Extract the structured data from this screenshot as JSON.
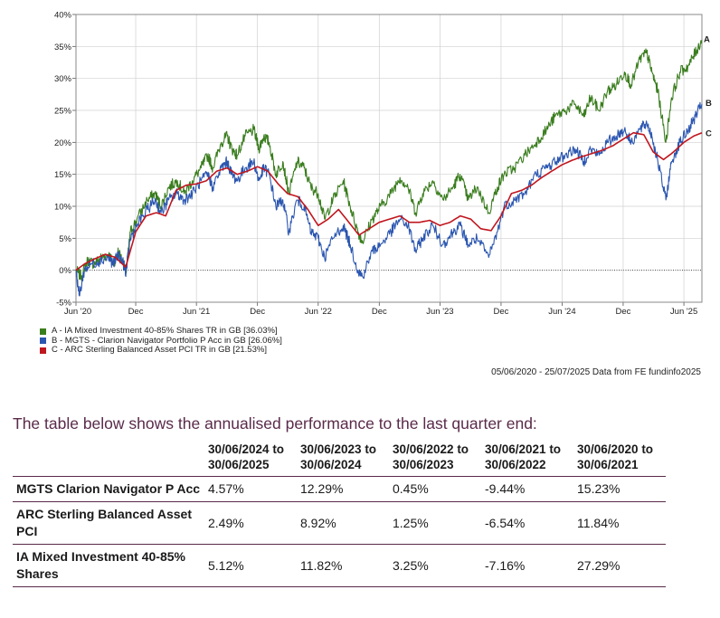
{
  "chart_data": {
    "type": "line",
    "y_ticks": [
      "40%",
      "35%",
      "30%",
      "25%",
      "20%",
      "15%",
      "10%",
      "5%",
      "0%",
      "-5%"
    ],
    "y_tick_values": [
      40,
      35,
      30,
      25,
      20,
      15,
      10,
      5,
      0,
      -5
    ],
    "ylim": [
      -5,
      40
    ],
    "x_ticks": [
      "Jun '20",
      "Dec",
      "Jun '21",
      "Dec",
      "Jun '22",
      "Dec",
      "Jun '23",
      "Dec",
      "Jun '24",
      "Dec",
      "Jun '25"
    ],
    "x_tick_dates": [
      "2020-06-05",
      "2020-12-01",
      "2021-06-01",
      "2021-12-01",
      "2022-06-01",
      "2022-12-01",
      "2023-06-01",
      "2023-12-01",
      "2024-06-01",
      "2024-12-01",
      "2025-06-01"
    ],
    "xlim": [
      "2020-06-05",
      "2025-07-25"
    ],
    "grid": true,
    "zero_line": "dotted",
    "legend_placement": "bottom-left",
    "series": [
      {
        "name": "A - IA Mixed Investment 40-85% Shares TR in GB [36.03%]",
        "end_label": "A",
        "color": "#3a7d1e",
        "points": [
          [
            "2020-06-05",
            0
          ],
          [
            "2020-06-20",
            -1
          ],
          [
            "2020-07-10",
            1.5
          ],
          [
            "2020-07-30",
            1
          ],
          [
            "2020-08-20",
            2
          ],
          [
            "2020-09-10",
            2.5
          ],
          [
            "2020-09-25",
            1
          ],
          [
            "2020-10-10",
            3
          ],
          [
            "2020-10-25",
            1
          ],
          [
            "2020-11-02",
            -0.5
          ],
          [
            "2020-11-15",
            6
          ],
          [
            "2020-12-05",
            8
          ],
          [
            "2021-01-05",
            11
          ],
          [
            "2021-01-28",
            12
          ],
          [
            "2021-02-15",
            10
          ],
          [
            "2021-03-10",
            13
          ],
          [
            "2021-04-05",
            14
          ],
          [
            "2021-04-25",
            12
          ],
          [
            "2021-05-20",
            14
          ],
          [
            "2021-06-15",
            16
          ],
          [
            "2021-07-05",
            18
          ],
          [
            "2021-07-20",
            16
          ],
          [
            "2021-08-15",
            20
          ],
          [
            "2021-09-01",
            21
          ],
          [
            "2021-09-15",
            19
          ],
          [
            "2021-10-01",
            18
          ],
          [
            "2021-10-25",
            21
          ],
          [
            "2021-11-20",
            22
          ],
          [
            "2021-12-05",
            19
          ],
          [
            "2021-12-20",
            21
          ],
          [
            "2022-01-05",
            20
          ],
          [
            "2022-01-25",
            15
          ],
          [
            "2022-02-15",
            17
          ],
          [
            "2022-03-05",
            12
          ],
          [
            "2022-03-30",
            17
          ],
          [
            "2022-04-20",
            16
          ],
          [
            "2022-05-10",
            13
          ],
          [
            "2022-06-01",
            12
          ],
          [
            "2022-06-20",
            8
          ],
          [
            "2022-07-15",
            11
          ],
          [
            "2022-08-15",
            14
          ],
          [
            "2022-09-05",
            10
          ],
          [
            "2022-09-28",
            6
          ],
          [
            "2022-10-12",
            4.5
          ],
          [
            "2022-11-10",
            8
          ],
          [
            "2022-12-05",
            10
          ],
          [
            "2023-01-05",
            12
          ],
          [
            "2023-02-01",
            14.5
          ],
          [
            "2023-02-25",
            13
          ],
          [
            "2023-03-20",
            9
          ],
          [
            "2023-04-10",
            12
          ],
          [
            "2023-05-10",
            14
          ],
          [
            "2023-06-10",
            11
          ],
          [
            "2023-07-10",
            13
          ],
          [
            "2023-07-31",
            15
          ],
          [
            "2023-08-25",
            11
          ],
          [
            "2023-09-20",
            13
          ],
          [
            "2023-10-25",
            9
          ],
          [
            "2023-11-20",
            13
          ],
          [
            "2023-12-10",
            15
          ],
          [
            "2024-01-10",
            16
          ],
          [
            "2024-02-10",
            18
          ],
          [
            "2024-03-15",
            20
          ],
          [
            "2024-04-15",
            22
          ],
          [
            "2024-05-10",
            24
          ],
          [
            "2024-06-10",
            25
          ],
          [
            "2024-07-10",
            26
          ],
          [
            "2024-08-05",
            24
          ],
          [
            "2024-08-25",
            27
          ],
          [
            "2024-09-20",
            25
          ],
          [
            "2024-10-15",
            28
          ],
          [
            "2024-11-10",
            29
          ],
          [
            "2024-12-05",
            31
          ],
          [
            "2024-12-25",
            29
          ],
          [
            "2025-01-20",
            33
          ],
          [
            "2025-02-10",
            34
          ],
          [
            "2025-02-25",
            31
          ],
          [
            "2025-03-15",
            28
          ],
          [
            "2025-04-08",
            20
          ],
          [
            "2025-04-25",
            27
          ],
          [
            "2025-05-20",
            31
          ],
          [
            "2025-06-15",
            32
          ],
          [
            "2025-07-05",
            34
          ],
          [
            "2025-07-25",
            36
          ]
        ]
      },
      {
        "name": "B - MGTS - Clarion Navigator Portfolio P Acc in GB [26.06%]",
        "end_label": "B",
        "color": "#2b56b0",
        "points": [
          [
            "2020-06-05",
            0
          ],
          [
            "2020-06-15",
            -4
          ],
          [
            "2020-06-30",
            0
          ],
          [
            "2020-07-20",
            1
          ],
          [
            "2020-08-15",
            1.5
          ],
          [
            "2020-09-10",
            2
          ],
          [
            "2020-09-25",
            1
          ],
          [
            "2020-10-10",
            2.5
          ],
          [
            "2020-10-25",
            1
          ],
          [
            "2020-11-02",
            -0.3
          ],
          [
            "2020-11-15",
            5
          ],
          [
            "2020-12-05",
            7
          ],
          [
            "2021-01-05",
            9.5
          ],
          [
            "2021-01-28",
            11
          ],
          [
            "2021-02-15",
            9
          ],
          [
            "2021-03-10",
            11
          ],
          [
            "2021-04-05",
            12
          ],
          [
            "2021-04-25",
            11
          ],
          [
            "2021-05-20",
            12
          ],
          [
            "2021-06-15",
            14
          ],
          [
            "2021-07-05",
            15
          ],
          [
            "2021-07-20",
            13
          ],
          [
            "2021-08-15",
            16
          ],
          [
            "2021-09-01",
            17
          ],
          [
            "2021-09-15",
            15
          ],
          [
            "2021-10-01",
            14
          ],
          [
            "2021-10-25",
            16
          ],
          [
            "2021-11-20",
            17
          ],
          [
            "2021-12-05",
            14
          ],
          [
            "2021-12-20",
            16
          ],
          [
            "2022-01-05",
            15
          ],
          [
            "2022-01-25",
            10
          ],
          [
            "2022-02-15",
            11
          ],
          [
            "2022-03-05",
            6
          ],
          [
            "2022-03-30",
            11
          ],
          [
            "2022-04-20",
            10
          ],
          [
            "2022-05-10",
            6
          ],
          [
            "2022-06-01",
            5
          ],
          [
            "2022-06-20",
            2
          ],
          [
            "2022-07-15",
            5
          ],
          [
            "2022-08-15",
            7
          ],
          [
            "2022-09-05",
            4
          ],
          [
            "2022-09-28",
            0
          ],
          [
            "2022-10-12",
            -1
          ],
          [
            "2022-11-10",
            3
          ],
          [
            "2022-12-05",
            4
          ],
          [
            "2023-01-05",
            6
          ],
          [
            "2023-02-01",
            8
          ],
          [
            "2023-02-25",
            7
          ],
          [
            "2023-03-20",
            3
          ],
          [
            "2023-04-10",
            5
          ],
          [
            "2023-05-10",
            7
          ],
          [
            "2023-06-10",
            4
          ],
          [
            "2023-07-10",
            6
          ],
          [
            "2023-07-31",
            7
          ],
          [
            "2023-08-25",
            4
          ],
          [
            "2023-09-20",
            5
          ],
          [
            "2023-10-25",
            2
          ],
          [
            "2023-11-20",
            6
          ],
          [
            "2023-12-10",
            10
          ],
          [
            "2024-01-10",
            11
          ],
          [
            "2024-02-10",
            12
          ],
          [
            "2024-03-15",
            15
          ],
          [
            "2024-04-15",
            16
          ],
          [
            "2024-05-10",
            17
          ],
          [
            "2024-06-10",
            18
          ],
          [
            "2024-07-10",
            19
          ],
          [
            "2024-08-05",
            17
          ],
          [
            "2024-08-25",
            19
          ],
          [
            "2024-09-20",
            18
          ],
          [
            "2024-10-15",
            20
          ],
          [
            "2024-11-10",
            21
          ],
          [
            "2024-12-05",
            22
          ],
          [
            "2024-12-25",
            20
          ],
          [
            "2025-01-20",
            22
          ],
          [
            "2025-02-10",
            23
          ],
          [
            "2025-02-25",
            21
          ],
          [
            "2025-03-15",
            17
          ],
          [
            "2025-04-08",
            11
          ],
          [
            "2025-04-25",
            17
          ],
          [
            "2025-05-20",
            20
          ],
          [
            "2025-06-15",
            22
          ],
          [
            "2025-07-05",
            24
          ],
          [
            "2025-07-25",
            26
          ]
        ]
      },
      {
        "name": "C - ARC Sterling Balanced Asset PCI TR in GB [21.53%]",
        "end_label": "C",
        "color": "#c0161e",
        "points": [
          [
            "2020-06-05",
            0
          ],
          [
            "2020-07-01",
            1
          ],
          [
            "2020-08-01",
            1.8
          ],
          [
            "2020-09-01",
            2.5
          ],
          [
            "2020-10-01",
            2
          ],
          [
            "2020-11-01",
            0.5
          ],
          [
            "2020-12-01",
            6
          ],
          [
            "2021-01-01",
            8.5
          ],
          [
            "2021-02-01",
            9
          ],
          [
            "2021-03-01",
            8.5
          ],
          [
            "2021-04-01",
            12.5
          ],
          [
            "2021-05-01",
            13.3
          ],
          [
            "2021-06-01",
            13.5
          ],
          [
            "2021-07-01",
            14
          ],
          [
            "2021-08-01",
            15.5
          ],
          [
            "2021-09-01",
            16
          ],
          [
            "2021-10-01",
            15
          ],
          [
            "2021-11-01",
            15.5
          ],
          [
            "2021-12-01",
            16.2
          ],
          [
            "2022-01-01",
            15.5
          ],
          [
            "2022-02-01",
            13.5
          ],
          [
            "2022-03-01",
            12
          ],
          [
            "2022-04-01",
            11.5
          ],
          [
            "2022-05-01",
            9.5
          ],
          [
            "2022-06-01",
            7
          ],
          [
            "2022-07-01",
            8
          ],
          [
            "2022-08-01",
            9.5
          ],
          [
            "2022-09-01",
            7.5
          ],
          [
            "2022-10-01",
            5.5
          ],
          [
            "2022-11-01",
            6.5
          ],
          [
            "2022-12-01",
            7.5
          ],
          [
            "2023-01-01",
            8
          ],
          [
            "2023-02-01",
            8.5
          ],
          [
            "2023-03-01",
            7.5
          ],
          [
            "2023-04-01",
            7.5
          ],
          [
            "2023-05-01",
            7.8
          ],
          [
            "2023-06-01",
            7
          ],
          [
            "2023-07-01",
            7.5
          ],
          [
            "2023-08-01",
            8.5
          ],
          [
            "2023-09-01",
            8
          ],
          [
            "2023-10-01",
            6.5
          ],
          [
            "2023-11-01",
            6.2
          ],
          [
            "2023-12-01",
            8.5
          ],
          [
            "2024-01-01",
            12
          ],
          [
            "2024-02-01",
            12.5
          ],
          [
            "2024-03-01",
            13.3
          ],
          [
            "2024-04-01",
            14.5
          ],
          [
            "2024-05-01",
            15.5
          ],
          [
            "2024-06-01",
            16.5
          ],
          [
            "2024-07-01",
            17.2
          ],
          [
            "2024-08-01",
            17.8
          ],
          [
            "2024-09-01",
            18.3
          ],
          [
            "2024-10-01",
            18.8
          ],
          [
            "2024-11-01",
            19.5
          ],
          [
            "2024-12-01",
            20.5
          ],
          [
            "2025-01-01",
            21.5
          ],
          [
            "2025-02-01",
            21.2
          ],
          [
            "2025-03-01",
            18.5
          ],
          [
            "2025-04-01",
            17.3
          ],
          [
            "2025-05-01",
            18.5
          ],
          [
            "2025-06-01",
            20
          ],
          [
            "2025-07-01",
            21
          ],
          [
            "2025-07-25",
            21.5
          ]
        ]
      }
    ]
  },
  "legend": {
    "items": [
      {
        "label": "A - IA Mixed Investment 40-85% Shares TR in GB [36.03%]",
        "color": "#3a7d1e"
      },
      {
        "label": "B - MGTS - Clarion Navigator Portfolio P Acc in GB [26.06%]",
        "color": "#2b56b0"
      },
      {
        "label": "C - ARC Sterling Balanced Asset PCI TR in GB [21.53%]",
        "color": "#c0161e"
      }
    ]
  },
  "source_note": "05/06/2020 - 25/07/2025 Data from FE fundinfo2025",
  "intro_text": "The table below shows the annualised performance to the last quarter end:",
  "table": {
    "headers": [
      {
        "line1": "30/06/2024 to",
        "line2": "30/06/2025"
      },
      {
        "line1": "30/06/2023 to",
        "line2": "30/06/2024"
      },
      {
        "line1": "30/06/2022 to",
        "line2": "30/06/2023"
      },
      {
        "line1": "30/06/2021 to",
        "line2": "30/06/2022"
      },
      {
        "line1": "30/06/2020 to",
        "line2": "30/06/2021"
      }
    ],
    "rows": [
      {
        "fund": "MGTS Clarion Navigator P Acc",
        "values": [
          "4.57%",
          "12.29%",
          "0.45%",
          "-9.44%",
          "15.23%"
        ]
      },
      {
        "fund": "ARC Sterling Balanced Asset PCI",
        "values": [
          "2.49%",
          "8.92%",
          "1.25%",
          "-6.54%",
          "11.84%"
        ]
      },
      {
        "fund": "IA Mixed Investment 40-85% Shares",
        "values": [
          "5.12%",
          "11.82%",
          "3.25%",
          "-7.16%",
          "27.29%"
        ]
      }
    ]
  },
  "colors": {
    "accent": "#5a2a4a",
    "grid": "#d0d0d0"
  }
}
